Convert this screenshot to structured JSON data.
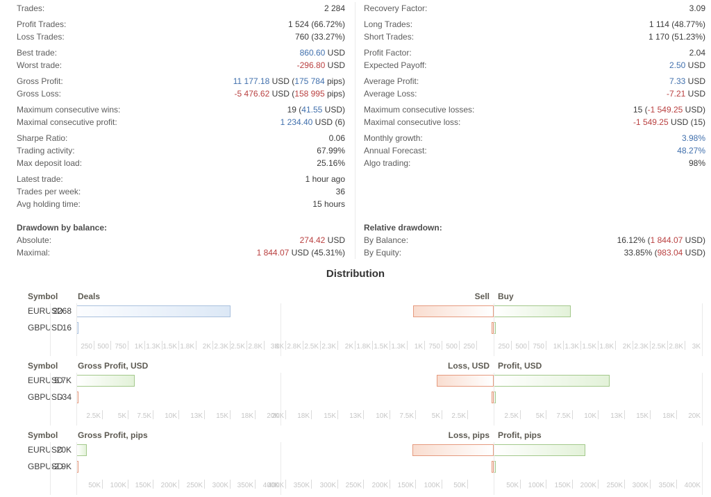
{
  "colors": {
    "accent_blue": "#4170ad",
    "accent_red": "#b94040",
    "deals_bar_border": "#a9c0dd",
    "deals_bar_fill": "#dce8f6",
    "loss_bar_border": "#e59a7e",
    "loss_bar_fill": "#f9ddd0",
    "profit_bar_border": "#a3c88b",
    "profit_bar_fill": "#e3f2d9"
  },
  "stats": {
    "left": [
      {
        "rows": [
          {
            "label": "Trades:",
            "segments": [
              {
                "t": "2 284",
                "c": "d"
              }
            ]
          }
        ]
      },
      {
        "rows": [
          {
            "label": "Profit Trades:",
            "segments": [
              {
                "t": "1 524 (66.72%)",
                "c": "d"
              }
            ]
          },
          {
            "label": "Loss Trades:",
            "segments": [
              {
                "t": "760 (33.27%)",
                "c": "d"
              }
            ]
          }
        ]
      },
      {
        "rows": [
          {
            "label": "Best trade:",
            "segments": [
              {
                "t": "860.60",
                "c": "b"
              },
              {
                "t": " USD",
                "c": "d"
              }
            ]
          },
          {
            "label": "Worst trade:",
            "segments": [
              {
                "t": "-296.80",
                "c": "r"
              },
              {
                "t": " USD",
                "c": "d"
              }
            ]
          }
        ]
      },
      {
        "rows": [
          {
            "label": "Gross Profit:",
            "segments": [
              {
                "t": "11 177.18",
                "c": "b"
              },
              {
                "t": " USD (",
                "c": "d"
              },
              {
                "t": "175 784",
                "c": "b"
              },
              {
                "t": " pips)",
                "c": "d"
              }
            ]
          },
          {
            "label": "Gross Loss:",
            "segments": [
              {
                "t": "-5 476.62",
                "c": "r"
              },
              {
                "t": " USD (",
                "c": "d"
              },
              {
                "t": "158 995",
                "c": "r"
              },
              {
                "t": " pips)",
                "c": "d"
              }
            ]
          }
        ]
      },
      {
        "rows": [
          {
            "label": "Maximum consecutive wins:",
            "segments": [
              {
                "t": "19 (",
                "c": "d"
              },
              {
                "t": "41.55",
                "c": "b"
              },
              {
                "t": " USD)",
                "c": "d"
              }
            ]
          },
          {
            "label": "Maximal consecutive profit:",
            "segments": [
              {
                "t": "1 234.40",
                "c": "b"
              },
              {
                "t": " USD (6)",
                "c": "d"
              }
            ]
          }
        ]
      },
      {
        "rows": [
          {
            "label": "Sharpe Ratio:",
            "segments": [
              {
                "t": "0.06",
                "c": "d"
              }
            ]
          },
          {
            "label": "Trading activity:",
            "segments": [
              {
                "t": "67.99%",
                "c": "d"
              }
            ]
          },
          {
            "label": "Max deposit load:",
            "segments": [
              {
                "t": "25.16%",
                "c": "d"
              }
            ]
          }
        ]
      },
      {
        "rows": [
          {
            "label": "Latest trade:",
            "segments": [
              {
                "t": "1 hour ago",
                "c": "d"
              }
            ]
          },
          {
            "label": "Trades per week:",
            "segments": [
              {
                "t": "36",
                "c": "d"
              }
            ]
          },
          {
            "label": "Avg holding time:",
            "segments": [
              {
                "t": "15 hours",
                "c": "d"
              }
            ]
          }
        ]
      },
      {
        "gap": "large",
        "rows": [
          {
            "label": "Drawdown by balance:",
            "bold": true,
            "segments": []
          },
          {
            "label": "Absolute:",
            "segments": [
              {
                "t": "274.42",
                "c": "r"
              },
              {
                "t": " USD",
                "c": "d"
              }
            ]
          },
          {
            "label": "Maximal:",
            "segments": [
              {
                "t": "1 844.07",
                "c": "r"
              },
              {
                "t": " USD (45.31%)",
                "c": "d"
              }
            ]
          }
        ]
      }
    ],
    "right": [
      {
        "rows": [
          {
            "label": "Recovery Factor:",
            "segments": [
              {
                "t": "3.09",
                "c": "d"
              }
            ]
          }
        ]
      },
      {
        "rows": [
          {
            "label": "Long Trades:",
            "segments": [
              {
                "t": "1 114 (48.77%)",
                "c": "d"
              }
            ]
          },
          {
            "label": "Short Trades:",
            "segments": [
              {
                "t": "1 170 (51.23%)",
                "c": "d"
              }
            ]
          }
        ]
      },
      {
        "rows": [
          {
            "label": "Profit Factor:",
            "segments": [
              {
                "t": "2.04",
                "c": "d"
              }
            ]
          },
          {
            "label": "Expected Payoff:",
            "segments": [
              {
                "t": "2.50",
                "c": "b"
              },
              {
                "t": " USD",
                "c": "d"
              }
            ]
          }
        ]
      },
      {
        "rows": [
          {
            "label": "Average Profit:",
            "segments": [
              {
                "t": "7.33",
                "c": "b"
              },
              {
                "t": " USD",
                "c": "d"
              }
            ]
          },
          {
            "label": "Average Loss:",
            "segments": [
              {
                "t": "-7.21",
                "c": "r"
              },
              {
                "t": " USD",
                "c": "d"
              }
            ]
          }
        ]
      },
      {
        "rows": [
          {
            "label": "Maximum consecutive losses:",
            "segments": [
              {
                "t": "15 (",
                "c": "d"
              },
              {
                "t": "-1 549.25",
                "c": "r"
              },
              {
                "t": " USD)",
                "c": "d"
              }
            ]
          },
          {
            "label": "Maximal consecutive loss:",
            "segments": [
              {
                "t": "-1 549.25",
                "c": "r"
              },
              {
                "t": " USD (15)",
                "c": "d"
              }
            ]
          }
        ]
      },
      {
        "rows": [
          {
            "label": "Monthly growth:",
            "segments": [
              {
                "t": "3.98%",
                "c": "b"
              }
            ]
          },
          {
            "label": "Annual Forecast:",
            "segments": [
              {
                "t": "48.27%",
                "c": "b"
              }
            ]
          },
          {
            "label": "Algo trading:",
            "segments": [
              {
                "t": "98%",
                "c": "d"
              }
            ]
          }
        ]
      },
      {
        "spacer": true,
        "rows": []
      },
      {
        "gap": "large",
        "rows": [
          {
            "label": "Relative drawdown:",
            "bold": true,
            "segments": []
          },
          {
            "label": "By Balance:",
            "segments": [
              {
                "t": "16.12% (",
                "c": "d"
              },
              {
                "t": "1 844.07",
                "c": "r"
              },
              {
                "t": " USD)",
                "c": "d"
              }
            ]
          },
          {
            "label": "By Equity:",
            "segments": [
              {
                "t": "33.85% (",
                "c": "d"
              },
              {
                "t": "983.04",
                "c": "r"
              },
              {
                "t": " USD)",
                "c": "d"
              }
            ]
          }
        ]
      }
    ]
  },
  "distribution": {
    "title": "Distribution",
    "symbol_header": "Symbol",
    "charts": [
      {
        "id": "deals",
        "left_title": "Deals",
        "sell_title": "Sell",
        "buy_title": "Buy",
        "left_axis": {
          "max": 3000,
          "labels": [
            "250",
            "500",
            "750",
            "1K",
            "1.3K",
            "1.5K",
            "1.8K",
            "2K",
            "2.3K",
            "2.5K",
            "2.8K",
            "3K"
          ]
        },
        "right_axis": {
          "max": 3000,
          "labels": [
            "250",
            "500",
            "750",
            "1K",
            "1.3K",
            "1.5K",
            "1.8K",
            "2K",
            "2.3K",
            "2.5K",
            "2.8K",
            "3K"
          ]
        },
        "rows": [
          {
            "symbol": "EURUSD",
            "display": "2268",
            "left": {
              "v": 2268,
              "color": "blue"
            },
            "sell": 1162,
            "buy": 1106
          },
          {
            "symbol": "GBPUSD",
            "display": "16",
            "left": {
              "v": 16,
              "color": "blue"
            },
            "sell": 8,
            "buy": 8
          }
        ]
      },
      {
        "id": "gross-usd",
        "left_title": "Gross Profit, USD",
        "sell_title": "Loss, USD",
        "buy_title": "Profit, USD",
        "left_axis": {
          "max": 20000,
          "labels": [
            "2.5K",
            "5K",
            "7.5K",
            "10K",
            "13K",
            "15K",
            "18K",
            "20K"
          ]
        },
        "right_axis": {
          "max": 20000,
          "labels": [
            "2.5K",
            "5K",
            "7.5K",
            "10K",
            "13K",
            "15K",
            "18K",
            "20K"
          ]
        },
        "rows": [
          {
            "symbol": "EURUSD",
            "display": "5.7K",
            "left": {
              "v": 5700,
              "color": "green"
            },
            "sell": 5440,
            "buy": 11140
          },
          {
            "symbol": "GBPUSD",
            "display": "-34",
            "left": {
              "v": 34,
              "color": "red"
            },
            "sell": 80,
            "buy": 50
          }
        ]
      },
      {
        "id": "gross-pips",
        "left_title": "Gross Profit, pips",
        "sell_title": "Loss, pips",
        "buy_title": "Profit, pips",
        "left_axis": {
          "max": 400000,
          "labels": [
            "50K",
            "100K",
            "150K",
            "200K",
            "250K",
            "300K",
            "350K",
            "400K"
          ]
        },
        "right_axis": {
          "max": 400000,
          "labels": [
            "50K",
            "100K",
            "150K",
            "200K",
            "250K",
            "300K",
            "350K",
            "400K"
          ]
        },
        "rows": [
          {
            "symbol": "EURUSD",
            "display": "20K",
            "left": {
              "v": 20000,
              "color": "green"
            },
            "sell": 156000,
            "buy": 176000
          },
          {
            "symbol": "GBPUSD",
            "display": "-2.9K",
            "left": {
              "v": 2900,
              "color": "red"
            },
            "sell": 3000,
            "buy": 2000
          }
        ]
      }
    ]
  },
  "chart_data": [
    {
      "type": "bar",
      "title": "Deals",
      "categories": [
        "EURUSD",
        "GBPUSD"
      ],
      "series": [
        {
          "name": "Deals",
          "values": [
            2268,
            16
          ]
        },
        {
          "name": "Sell",
          "values": [
            1162,
            8
          ]
        },
        {
          "name": "Buy",
          "values": [
            1106,
            8
          ]
        }
      ],
      "xlabel": "Deals",
      "ylabel": "Symbol",
      "xlim": [
        0,
        3000
      ]
    },
    {
      "type": "bar",
      "title": "Gross Profit, USD",
      "categories": [
        "EURUSD",
        "GBPUSD"
      ],
      "series": [
        {
          "name": "Gross Profit, USD",
          "values": [
            5700,
            -34
          ]
        },
        {
          "name": "Loss, USD",
          "values": [
            5440,
            80
          ]
        },
        {
          "name": "Profit, USD",
          "values": [
            11140,
            50
          ]
        }
      ],
      "xlabel": "USD",
      "ylabel": "Symbol",
      "xlim": [
        0,
        20000
      ]
    },
    {
      "type": "bar",
      "title": "Gross Profit, pips",
      "categories": [
        "EURUSD",
        "GBPUSD"
      ],
      "series": [
        {
          "name": "Gross Profit, pips",
          "values": [
            20000,
            -2900
          ]
        },
        {
          "name": "Loss, pips",
          "values": [
            156000,
            3000
          ]
        },
        {
          "name": "Profit, pips",
          "values": [
            176000,
            2000
          ]
        }
      ],
      "xlabel": "pips",
      "ylabel": "Symbol",
      "xlim": [
        0,
        400000
      ]
    }
  ]
}
